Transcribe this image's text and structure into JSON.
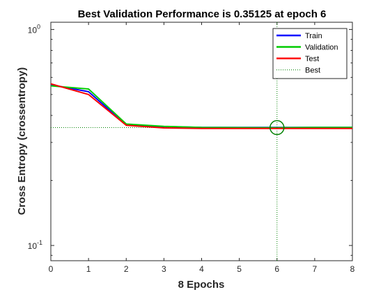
{
  "chart_data": {
    "type": "line",
    "title": "Best Validation Performance is 0.35125 at epoch 6",
    "xlabel": "8 Epochs",
    "ylabel": "Cross Entropy  (crossentropy)",
    "xlim": [
      0,
      8
    ],
    "ylim": [
      0.085,
      1.08
    ],
    "yscale": "log",
    "x_ticks": [
      0,
      1,
      2,
      3,
      4,
      5,
      6,
      7,
      8
    ],
    "y_ticks": [
      {
        "value": 1.0,
        "base": "10",
        "exponent": "0"
      },
      {
        "value": 0.1,
        "base": "10",
        "exponent": "-1"
      }
    ],
    "legend_position": "top-right",
    "grid": false,
    "series": [
      {
        "name": "Train",
        "color": "#0000ff",
        "style": "solid",
        "x": [
          0,
          1,
          2,
          3,
          4,
          5,
          6,
          7,
          8
        ],
        "y": [
          0.555,
          0.515,
          0.362,
          0.355,
          0.352,
          0.352,
          0.352,
          0.352,
          0.352
        ]
      },
      {
        "name": "Validation",
        "color": "#00cc00",
        "style": "solid",
        "x": [
          0,
          1,
          2,
          3,
          4,
          5,
          6,
          7,
          8
        ],
        "y": [
          0.548,
          0.53,
          0.365,
          0.356,
          0.352,
          0.3515,
          0.35125,
          0.352,
          0.352
        ]
      },
      {
        "name": "Test",
        "color": "#ff0000",
        "style": "solid",
        "x": [
          0,
          1,
          2,
          3,
          4,
          5,
          6,
          7,
          8
        ],
        "y": [
          0.56,
          0.5,
          0.36,
          0.35,
          0.348,
          0.348,
          0.348,
          0.348,
          0.348
        ]
      }
    ],
    "best": {
      "name": "Best",
      "color": "#008000",
      "style": "dotted",
      "epoch": 6,
      "value": 0.35125
    }
  }
}
